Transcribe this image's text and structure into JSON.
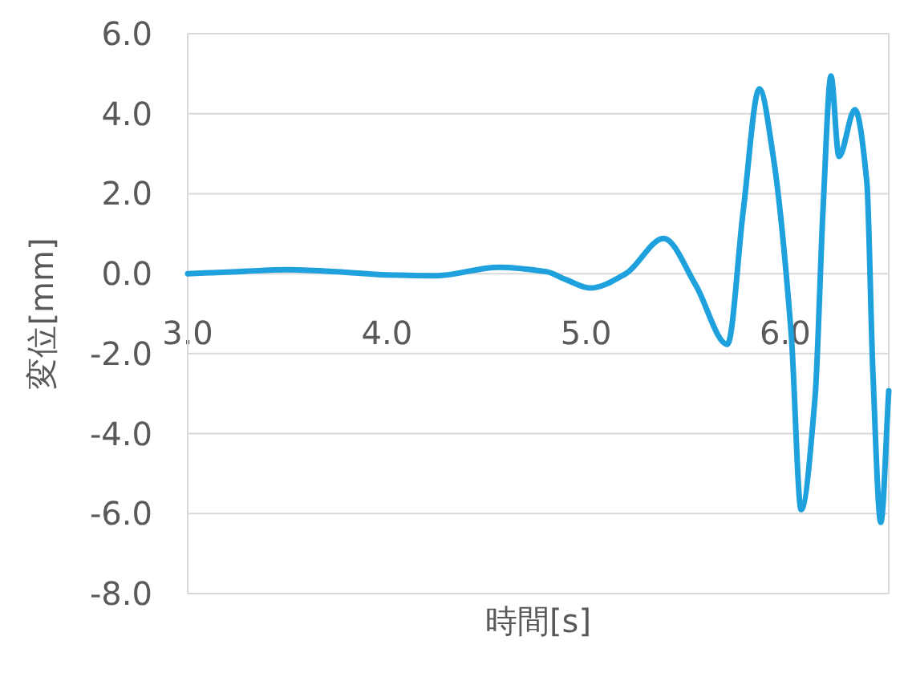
{
  "chart_data": {
    "type": "line",
    "xlabel": "時間[s]",
    "ylabel": "変位[mm]",
    "xlim": [
      3.0,
      6.52
    ],
    "xticks": [
      {
        "value": 3,
        "label": "3.0"
      },
      {
        "value": 4,
        "label": "4.0"
      },
      {
        "value": 5,
        "label": "5.0"
      },
      {
        "value": 6,
        "label": "6.0"
      }
    ],
    "ylim": [
      -8,
      6
    ],
    "yticks": [
      {
        "value": -8,
        "label": "-8.0"
      },
      {
        "value": -6,
        "label": "-6.0"
      },
      {
        "value": -4,
        "label": "-4.0"
      },
      {
        "value": -2,
        "label": "-2.0"
      },
      {
        "value": 0,
        "label": "0.0"
      },
      {
        "value": 2,
        "label": "2.0"
      },
      {
        "value": 4,
        "label": "4.0"
      },
      {
        "value": 6,
        "label": "6.0"
      }
    ],
    "grid": "y",
    "series": [
      {
        "color": "#1ea1dc",
        "x": [
          3.0,
          3.25,
          3.5,
          3.75,
          4.0,
          4.25,
          4.56,
          4.8,
          4.9,
          5.02,
          5.2,
          5.39,
          5.55,
          5.71,
          5.79,
          5.87,
          5.94,
          6.03,
          6.08,
          6.15,
          6.19,
          6.23,
          6.27,
          6.35,
          6.41,
          6.44,
          6.48,
          6.52
        ],
        "values": [
          0.0,
          0.05,
          0.1,
          0.05,
          -0.03,
          -0.05,
          0.16,
          0.05,
          -0.15,
          -0.36,
          0.0,
          0.88,
          -0.28,
          -1.77,
          1.6,
          4.62,
          2.93,
          -1.49,
          -5.9,
          -3.09,
          1.6,
          4.94,
          2.93,
          4.1,
          2.29,
          -2.41,
          -6.22,
          -2.93
        ]
      }
    ]
  }
}
